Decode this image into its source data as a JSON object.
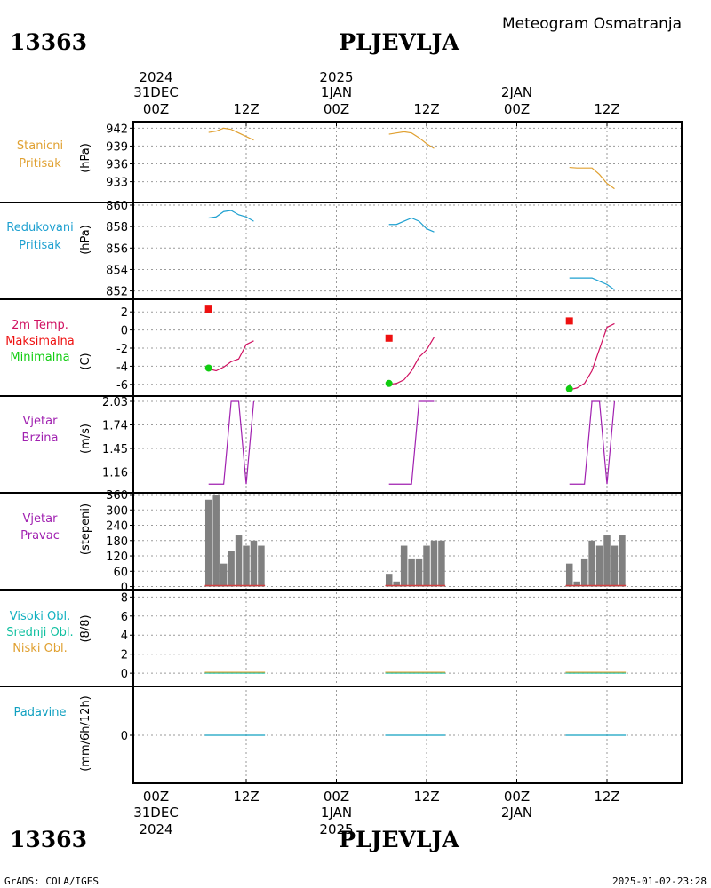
{
  "header": {
    "station_id": "13363",
    "station_name": "PLJEVLJA",
    "meteogram_title": "Meteogram Osmatranja"
  },
  "footer": {
    "credit": "GrADS: COLA/IGES",
    "timestamp": "2025-01-02-23:28"
  },
  "time_axis": {
    "top_labels": [
      {
        "year": "2024",
        "date": "31DEC",
        "hour": "00Z"
      },
      {
        "hour": "12Z"
      },
      {
        "year": "2025",
        "date": "1JAN",
        "hour": "00Z"
      },
      {
        "hour": "12Z"
      },
      {
        "date": "2JAN",
        "hour": "00Z"
      },
      {
        "hour": "12Z"
      }
    ],
    "bottom_labels": [
      {
        "hour": "00Z",
        "date": "31DEC",
        "year": "2024"
      },
      {
        "hour": "12Z"
      },
      {
        "hour": "00Z",
        "date": "1JAN",
        "year": "2025"
      },
      {
        "hour": "12Z"
      },
      {
        "hour": "00Z",
        "date": "2JAN"
      },
      {
        "hour": "12Z"
      }
    ]
  },
  "colors": {
    "station_pressure": "#e0a030",
    "reduced_pressure": "#1ea0d0",
    "temp_line": "#d01060",
    "t_max": "#ee1010",
    "t_min": "#10cc10",
    "wind_speed": "#a020b0",
    "wind_dir_bar": "#808080",
    "high_cloud": "#10b0c0",
    "mid_cloud": "#10c0a0",
    "low_cloud": "#e0a030",
    "precip": "#10a0c0"
  },
  "chart_data": [
    {
      "type": "line",
      "label_lines": [
        "Stanicni",
        "Pritisak"
      ],
      "ylabel": "(hPa)",
      "yticks": [
        "942",
        "939",
        "936",
        "933"
      ],
      "ylim": [
        931,
        942.5
      ],
      "series": [
        {
          "x": [
            7,
            8,
            9,
            10,
            11,
            12,
            13
          ],
          "values": [
            941.3,
            941.5,
            942.0,
            941.8,
            941.2,
            940.6,
            940.0
          ]
        },
        {
          "x": [
            31,
            32,
            33,
            34,
            35,
            36,
            37
          ],
          "values": [
            941.0,
            941.2,
            941.4,
            941.2,
            940.4,
            939.4,
            938.6
          ]
        },
        {
          "x": [
            55,
            56,
            57,
            58,
            59,
            60,
            61
          ],
          "values": [
            935.4,
            935.3,
            935.3,
            935.3,
            934.2,
            932.7,
            931.8
          ]
        }
      ]
    },
    {
      "type": "line",
      "label_lines": [
        "Redukovani",
        "Pritisak"
      ],
      "ylabel": "(hPa)",
      "yticks": [
        "860",
        "858",
        "856",
        "854",
        "852"
      ],
      "ylim": [
        851.8,
        860
      ],
      "series": [
        {
          "x": [
            7,
            8,
            9,
            10,
            11,
            12,
            13
          ],
          "values": [
            858.8,
            858.9,
            859.4,
            859.5,
            859.1,
            858.9,
            858.5
          ]
        },
        {
          "x": [
            31,
            32,
            33,
            34,
            35,
            36,
            37
          ],
          "values": [
            858.2,
            858.2,
            858.5,
            858.8,
            858.5,
            857.8,
            857.5
          ]
        },
        {
          "x": [
            55,
            56,
            57,
            58,
            59,
            60,
            61
          ],
          "values": [
            853.2,
            853.2,
            853.2,
            853.2,
            852.9,
            852.6,
            852.1
          ]
        }
      ]
    },
    {
      "type": "line",
      "label_lines": [
        "2m Temp.",
        "Maksimalna",
        "Minimalna"
      ],
      "ylabel": "(C)",
      "yticks": [
        "2",
        "0",
        "-2",
        "-4",
        "-6"
      ],
      "ylim": [
        -7,
        3
      ],
      "series": [
        {
          "x": [
            7,
            8,
            9,
            10,
            11,
            12,
            13
          ],
          "values": [
            -4.3,
            -4.5,
            -4.1,
            -3.5,
            -3.2,
            -1.6,
            -1.2
          ]
        },
        {
          "x": [
            31,
            32,
            33,
            34,
            35,
            36,
            37
          ],
          "values": [
            -6.0,
            -5.9,
            -5.5,
            -4.5,
            -3.0,
            -2.2,
            -0.8
          ]
        },
        {
          "x": [
            55,
            56,
            57,
            58,
            59,
            60,
            61
          ],
          "values": [
            -6.6,
            -6.4,
            -5.9,
            -4.5,
            -2.1,
            0.3,
            0.7
          ]
        }
      ],
      "t_max": [
        {
          "x": 7,
          "value": 2.3
        },
        {
          "x": 31,
          "value": -0.9
        },
        {
          "x": 55,
          "value": 1.0
        }
      ],
      "t_min": [
        {
          "x": 7,
          "value": -4.2
        },
        {
          "x": 31,
          "value": -5.9
        },
        {
          "x": 55,
          "value": -6.5
        }
      ]
    },
    {
      "type": "line",
      "label_lines": [
        "Vjetar",
        "Brzina"
      ],
      "ylabel": "(m/s)",
      "yticks": [
        "2.03",
        "1.74",
        "1.45",
        "1.16"
      ],
      "ylim": [
        0.98,
        2.03
      ],
      "series": [
        {
          "x": [
            7,
            8,
            9,
            10,
            11,
            12,
            13
          ],
          "values": [
            1.01,
            1.01,
            1.01,
            2.03,
            2.03,
            1.01,
            2.03
          ]
        },
        {
          "x": [
            31,
            32,
            33,
            34,
            35,
            36,
            37
          ],
          "values": [
            1.01,
            1.01,
            1.01,
            1.01,
            2.03,
            2.03,
            2.03
          ]
        },
        {
          "x": [
            55,
            56,
            57,
            58,
            59,
            60,
            61
          ],
          "values": [
            1.01,
            1.01,
            1.01,
            2.03,
            2.03,
            1.01,
            2.03
          ]
        }
      ],
      "series_end_x": [
        13,
        37,
        61
      ]
    },
    {
      "type": "bar",
      "label_lines": [
        "Vjetar",
        "Pravac"
      ],
      "ylabel": "(stepeni)",
      "yticks": [
        "360",
        "300",
        "240",
        "180",
        "120",
        "60",
        "0"
      ],
      "ylim": [
        -5,
        360
      ],
      "bars": [
        {
          "x": 6.5,
          "values": [
            340,
            360,
            90,
            140,
            200,
            160,
            180,
            160
          ]
        },
        {
          "x": 30.5,
          "values": [
            50,
            20,
            160,
            110,
            110,
            160,
            180,
            180
          ]
        },
        {
          "x": 54.5,
          "values": [
            90,
            20,
            110,
            180,
            160,
            200,
            160,
            200
          ]
        }
      ]
    },
    {
      "type": "line",
      "label_lines": [
        "Visoki Obl.",
        "Srednji Obl.",
        "Niski Obl."
      ],
      "ylabel": "(8/8)",
      "yticks": [
        "8",
        "6",
        "4",
        "2",
        "0"
      ],
      "ylim": [
        -1.2,
        8.5
      ],
      "series": [
        {
          "x": [
            6.5,
            14.5
          ],
          "values": [
            0,
            0
          ]
        },
        {
          "x": [
            30.5,
            38.5
          ],
          "values": [
            0,
            0
          ]
        },
        {
          "x": [
            54.5,
            62.5
          ],
          "values": [
            0,
            0
          ]
        }
      ]
    },
    {
      "type": "bar",
      "label_lines": [
        "Padavine"
      ],
      "ylabel": "(mm/6h/12h)",
      "yticks": [
        "0"
      ],
      "ylim": [
        -5,
        5
      ],
      "series": [
        {
          "x": [
            6.5,
            14.5
          ],
          "values": [
            0,
            0
          ]
        },
        {
          "x": [
            30.5,
            38.5
          ],
          "values": [
            0,
            0
          ]
        },
        {
          "x": [
            54.5,
            62.5
          ],
          "values": [
            0,
            0
          ]
        }
      ]
    }
  ]
}
